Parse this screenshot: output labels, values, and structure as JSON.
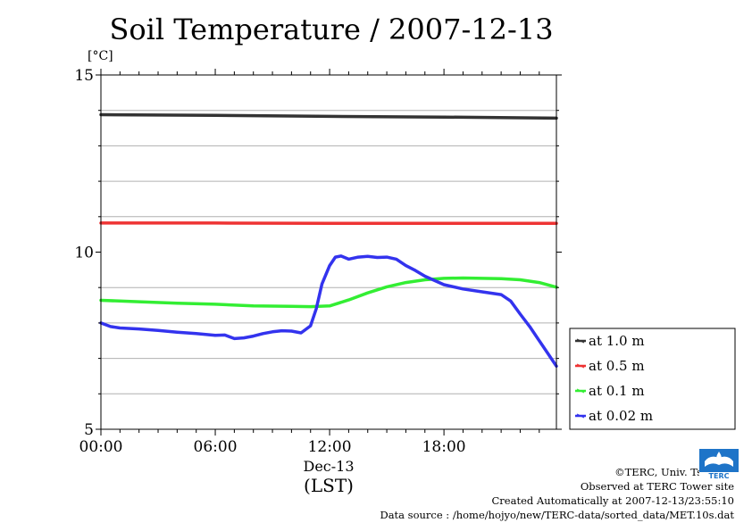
{
  "page": {
    "title": "Soil Temperature / 2007-12-13",
    "unit_label": "[°C]"
  },
  "chart_data": {
    "type": "line",
    "title": "Soil Temperature / 2007-12-13",
    "ylabel": "[°C]",
    "xlabel_lines": [
      "Dec-13",
      "(LST)"
    ],
    "x_unit": "hours",
    "xlim": [
      0,
      23.9
    ],
    "ylim": [
      5,
      15
    ],
    "x_ticks": [
      0,
      6,
      12,
      18
    ],
    "x_tick_labels": [
      "00:00",
      "06:00",
      "12:00",
      "18:00"
    ],
    "y_tick_labels": [
      {
        "value": 5,
        "label": "5"
      },
      {
        "value": 10,
        "label": "10"
      },
      {
        "value": 15,
        "label": "15"
      }
    ],
    "y_gridlines": [
      6,
      7,
      8,
      9,
      11,
      12,
      13,
      14
    ],
    "grid": true,
    "legend_placement": "right, outside plot (lower)",
    "series": [
      {
        "name": "at 1.0 m",
        "color": "#333333",
        "x": [
          0,
          6,
          12,
          18,
          23.9
        ],
        "y": [
          13.88,
          13.86,
          13.83,
          13.81,
          13.78
        ]
      },
      {
        "name": "at 0.5 m",
        "color": "#ee3333",
        "x": [
          0,
          6,
          12,
          18,
          23.9
        ],
        "y": [
          10.82,
          10.82,
          10.81,
          10.81,
          10.81
        ]
      },
      {
        "name": "at 0.1 m",
        "color": "#33ee33",
        "x": [
          0,
          2,
          4,
          6,
          8,
          10,
          11,
          12,
          13,
          14,
          15,
          16,
          17,
          18,
          19,
          20,
          21,
          22,
          23,
          23.9
        ],
        "y": [
          8.64,
          8.6,
          8.56,
          8.53,
          8.48,
          8.47,
          8.46,
          8.48,
          8.65,
          8.85,
          9.02,
          9.14,
          9.22,
          9.26,
          9.27,
          9.26,
          9.25,
          9.22,
          9.14,
          9.01
        ]
      },
      {
        "name": "at 0.02 m",
        "color": "#3333ee",
        "x": [
          0,
          0.5,
          1,
          2,
          3,
          4,
          5,
          6,
          6.5,
          7,
          7.5,
          8,
          8.5,
          9,
          9.5,
          10,
          10.5,
          11,
          11.3,
          11.6,
          12,
          12.3,
          12.6,
          13,
          13.5,
          14,
          14.5,
          15,
          15.5,
          16,
          16.5,
          17,
          18,
          19,
          20,
          21,
          21.5,
          22,
          22.5,
          23,
          23.5,
          23.9
        ],
        "y": [
          8.0,
          7.9,
          7.86,
          7.83,
          7.79,
          7.74,
          7.7,
          7.65,
          7.66,
          7.56,
          7.58,
          7.63,
          7.7,
          7.75,
          7.78,
          7.77,
          7.72,
          7.92,
          8.4,
          9.1,
          9.62,
          9.86,
          9.89,
          9.8,
          9.86,
          9.88,
          9.85,
          9.86,
          9.8,
          9.62,
          9.48,
          9.32,
          9.08,
          8.96,
          8.88,
          8.8,
          8.62,
          8.25,
          7.9,
          7.5,
          7.1,
          6.78
        ]
      }
    ]
  },
  "credits": {
    "copyright": "©TERC, Univ. Tsukuba",
    "observed": "Observed at TERC Tower site",
    "created": "Created Automatically at 2007-12-13/23:55:10",
    "source": "Data source : /home/hojyo/new/TERC-data/sorted_data/MET.10s.dat"
  },
  "logo": {
    "text": "TERC",
    "icon": "terc-logo-icon",
    "color": "#1e74c8"
  }
}
